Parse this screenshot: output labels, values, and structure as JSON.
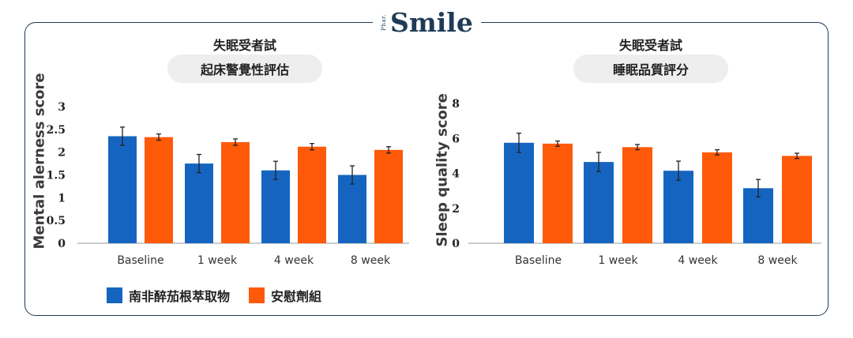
{
  "brand": {
    "main": "Smile",
    "small": "Phar."
  },
  "colors": {
    "series1": "#1565c0",
    "series2": "#ff5a0a",
    "frame": "#1f3b57"
  },
  "legend": [
    {
      "label": "南非醉茄根萃取物",
      "color": "#1565c0"
    },
    {
      "label": "安慰劑組",
      "color": "#ff5a0a"
    }
  ],
  "chart_data": [
    {
      "type": "bar",
      "title": "失眠受者試",
      "subtitle": "起床警覺性評估",
      "ylabel": "Mental alerness score",
      "ylim": [
        0,
        3
      ],
      "yticks": [
        "0",
        "0.5",
        "1",
        "1.5",
        "2",
        "2.5",
        "3"
      ],
      "ytick_values": [
        0,
        0.5,
        1,
        1.5,
        2,
        2.5,
        3
      ],
      "categories": [
        "Baseline",
        "1 week",
        "4 week",
        "8 week"
      ],
      "series": [
        {
          "name": "南非醉茄根萃取物",
          "values": [
            2.35,
            1.75,
            1.6,
            1.5
          ],
          "errors": [
            0.2,
            0.2,
            0.2,
            0.2
          ]
        },
        {
          "name": "安慰劑組",
          "values": [
            2.33,
            2.22,
            2.12,
            2.05
          ],
          "errors": [
            0.07,
            0.07,
            0.07,
            0.07
          ]
        }
      ]
    },
    {
      "type": "bar",
      "title": "失眠受者試",
      "subtitle": "睡眠品質評分",
      "ylabel": "Sleep quality score",
      "ylim": [
        0,
        8
      ],
      "yticks": [
        "0",
        "2",
        "4",
        "6",
        "8"
      ],
      "ytick_values": [
        0,
        2,
        4,
        6,
        8
      ],
      "categories": [
        "Baseline",
        "1 week",
        "4 week",
        "8 week"
      ],
      "series": [
        {
          "name": "南非醉茄根萃取物",
          "values": [
            5.75,
            4.65,
            4.15,
            3.15
          ],
          "errors": [
            0.55,
            0.55,
            0.55,
            0.5
          ]
        },
        {
          "name": "安慰劑組",
          "values": [
            5.7,
            5.5,
            5.2,
            5.0
          ],
          "errors": [
            0.15,
            0.15,
            0.15,
            0.15
          ]
        }
      ]
    }
  ]
}
